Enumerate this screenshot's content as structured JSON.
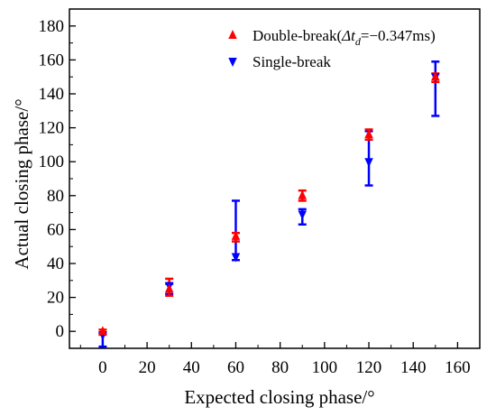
{
  "chart_data": {
    "type": "scatter",
    "xlabel": "Expected closing phase/°",
    "ylabel": "Actual closing phase/°",
    "xlim": [
      -15,
      170
    ],
    "ylim": [
      -10,
      190
    ],
    "x_ticks": [
      0,
      20,
      40,
      60,
      80,
      100,
      120,
      140,
      160
    ],
    "y_ticks": [
      0,
      20,
      40,
      60,
      80,
      100,
      120,
      140,
      160,
      180
    ],
    "x_tick_labels": [
      "0",
      "20",
      "40",
      "60",
      "80",
      "100",
      "120",
      "140",
      "160"
    ],
    "y_tick_labels": [
      "0",
      "20",
      "40",
      "60",
      "80",
      "100",
      "120",
      "140",
      "160",
      "180"
    ],
    "grid": false,
    "legend_position": "top-right",
    "series": [
      {
        "name": "Double-break(Δtd=−0.347ms)",
        "legend_prefix": "Double-break(",
        "legend_delta": "Δt",
        "legend_sub": "d",
        "legend_suffix": "=−0.347ms)",
        "marker": "triangle-up",
        "color": "#ff0000",
        "x": [
          0,
          30,
          60,
          90,
          120,
          150
        ],
        "y": [
          0,
          25,
          56,
          80,
          116,
          150
        ],
        "y_err_low": [
          -2,
          21,
          53,
          77,
          113,
          147
        ],
        "y_err_high": [
          1,
          31,
          58,
          83,
          119,
          152
        ]
      },
      {
        "name": "Single-break",
        "marker": "triangle-down",
        "color": "#0000ff",
        "x": [
          0,
          30,
          60,
          90,
          120,
          150
        ],
        "y": [
          -2,
          27,
          44,
          69,
          100,
          150
        ],
        "y_err_low": [
          -9,
          22,
          42,
          63,
          86,
          127
        ],
        "y_err_high": [
          -1,
          28,
          77,
          72,
          118,
          159
        ]
      }
    ]
  }
}
